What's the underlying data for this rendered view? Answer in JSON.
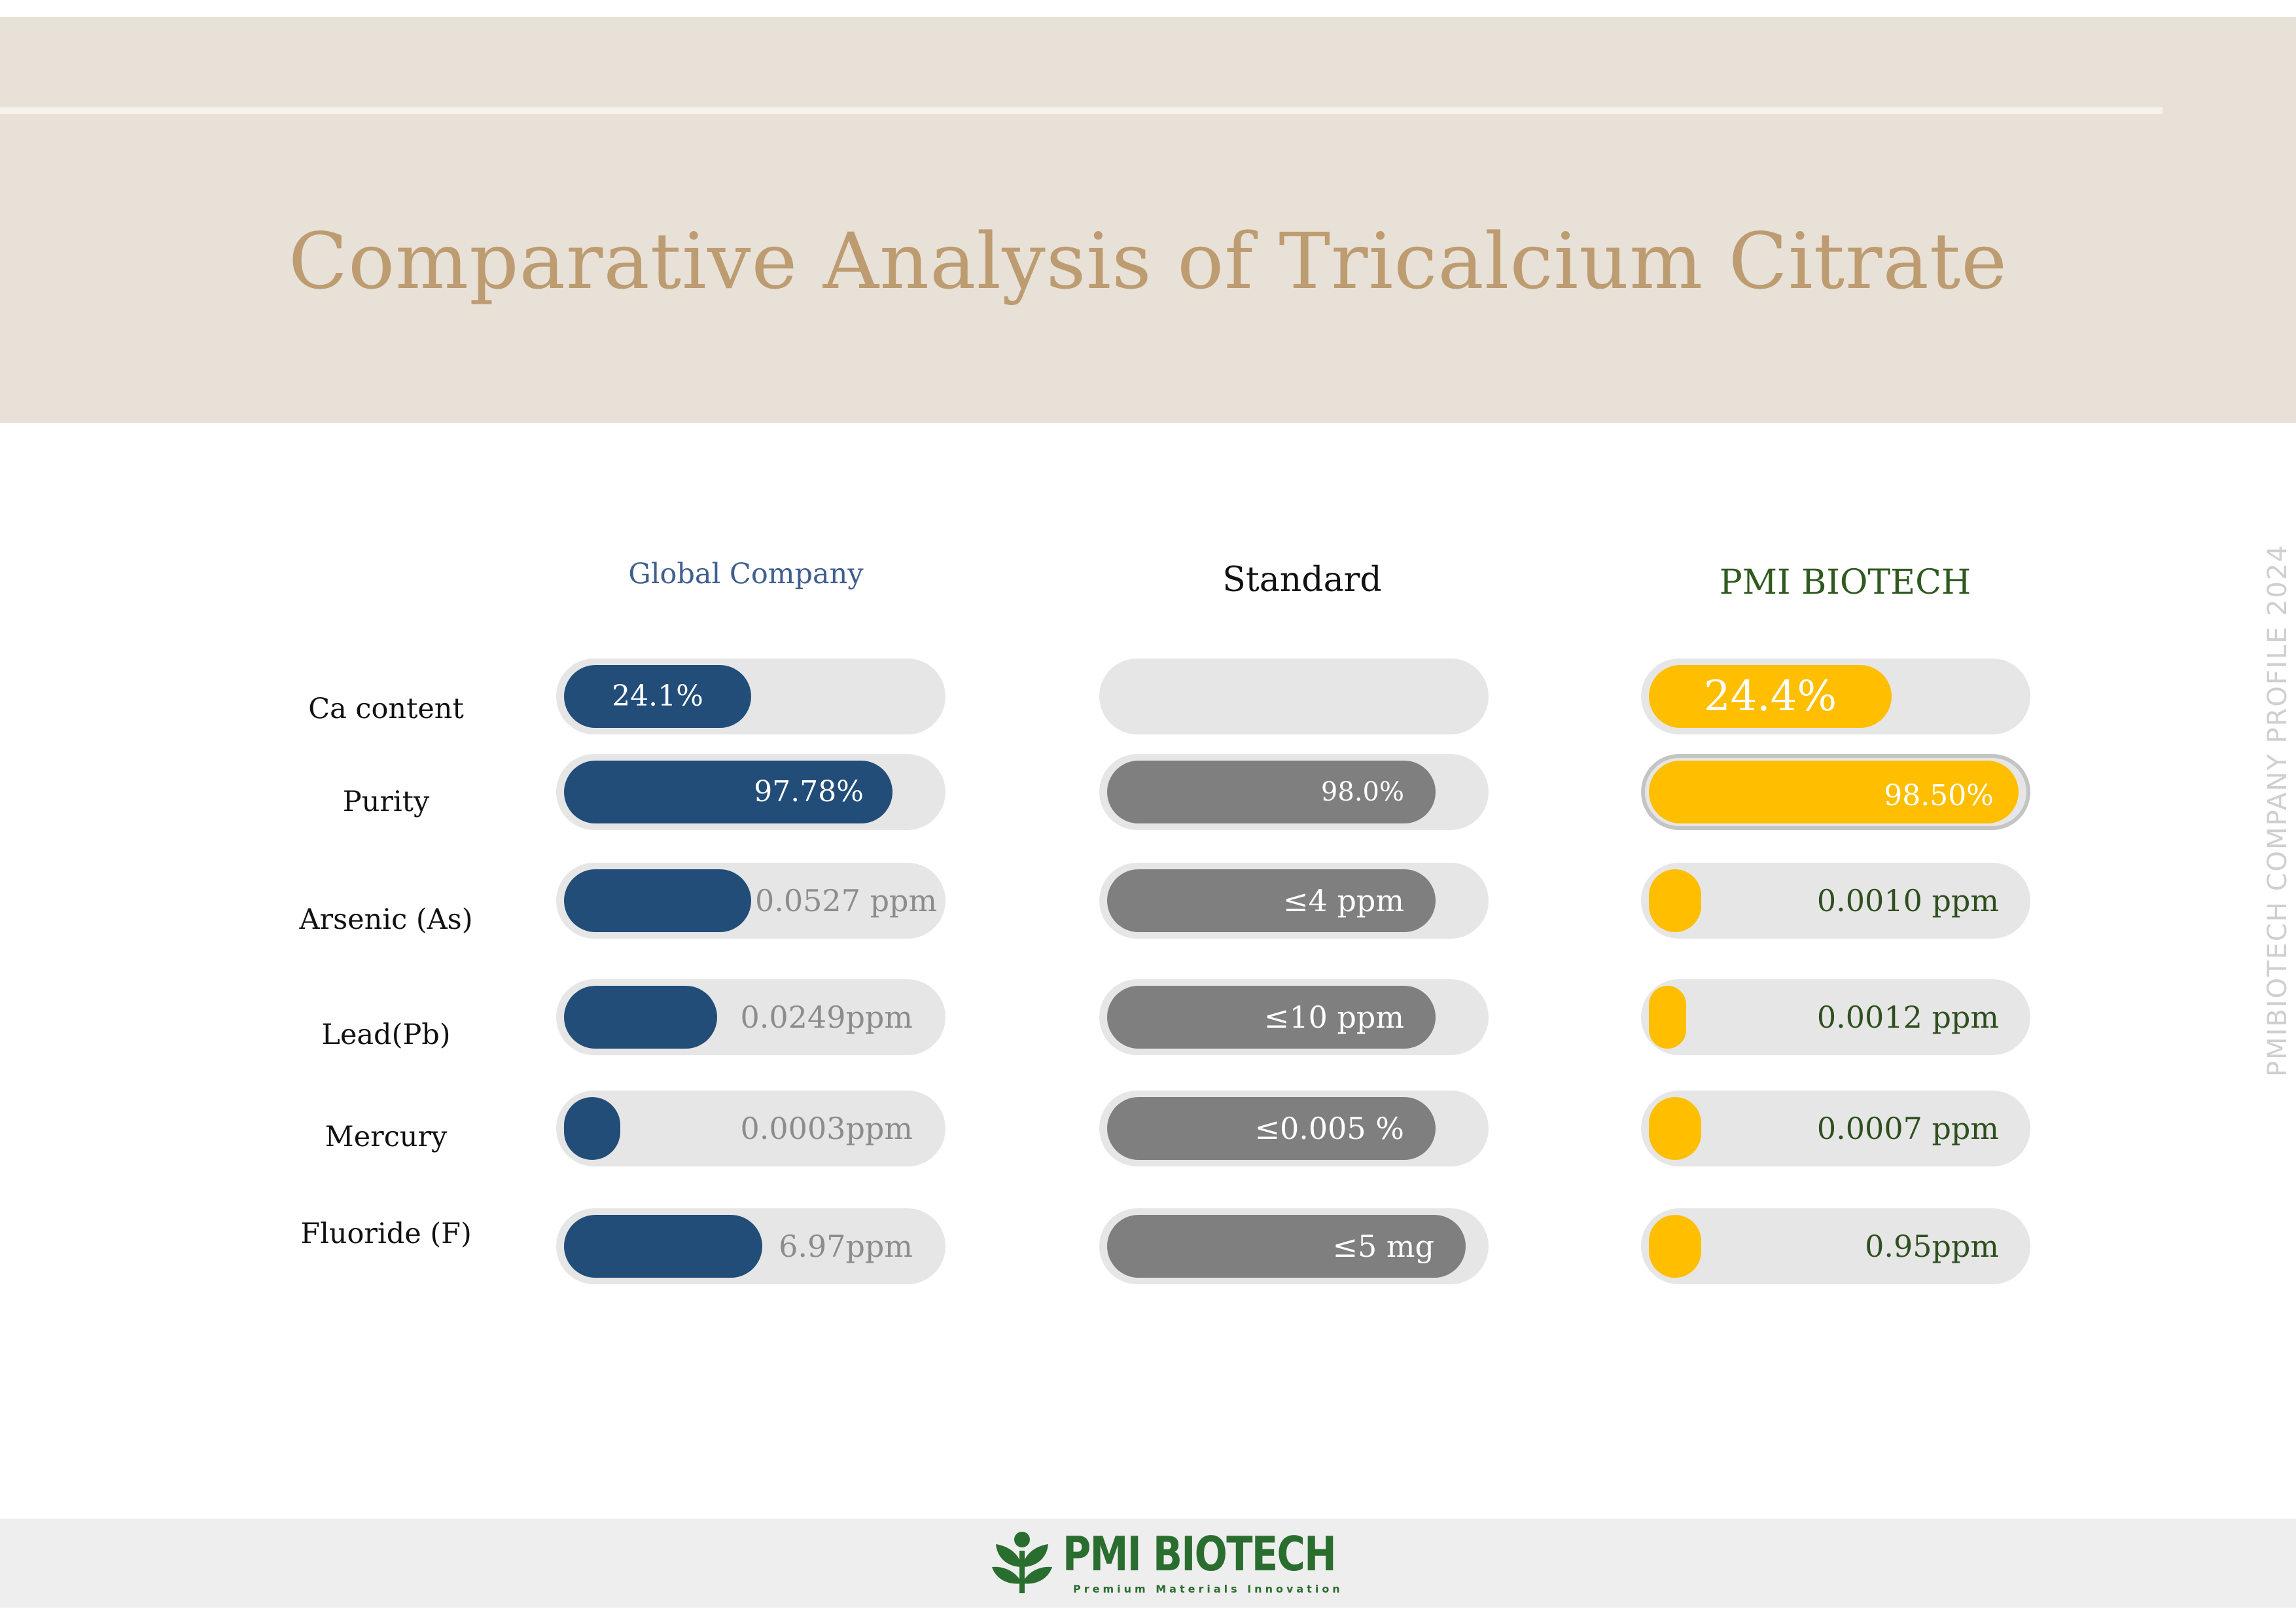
{
  "page": {
    "title": "Comparative Analysis of Tricalcium Citrate",
    "side_text": "PMIBIOTECH COMPANY  PROFILE 2024"
  },
  "columns": [
    {
      "label": "Global Company"
    },
    {
      "label": "Standard"
    },
    {
      "label": "PMI BIOTECH"
    }
  ],
  "chart_data": {
    "type": "bar",
    "categories": [
      "Ca content",
      "Purity",
      "Arsenic (As)",
      "Lead(Pb)",
      "Mercury",
      "Fluoride (F)"
    ],
    "series": [
      {
        "name": "Global Company",
        "color": "#214d78",
        "labels": [
          "24.1%",
          "97.78%",
          "0.0527 ppm",
          "0.0249ppm",
          "0.0003ppm",
          "6.97ppm"
        ],
        "fill_fraction": [
          0.5,
          0.88,
          0.5,
          0.41,
          0.15,
          0.53
        ]
      },
      {
        "name": "Standard",
        "color": "#7f7f7f",
        "labels": [
          "",
          "98.0%",
          "≤4 ppm",
          "≤10 ppm",
          "≤0.005 %",
          "≤5 mg"
        ],
        "fill_fraction": [
          0,
          0.88,
          0.88,
          0.88,
          0.88,
          0.96
        ]
      },
      {
        "name": "PMI BIOTECH",
        "color": "#ffbe00",
        "labels": [
          "24.4%",
          "98.50%",
          "0.0010 ppm",
          "0.0012 ppm",
          "0.0007 ppm",
          "0.95ppm"
        ],
        "fill_fraction": [
          0.65,
          0.99,
          0.14,
          0.1,
          0.14,
          0.14
        ]
      }
    ]
  },
  "footer": {
    "logo_name": "PMI BIOTECH",
    "logo_tagline": "Premium Materials Innovation",
    "logo_icon": "leaf-sprout-icon"
  }
}
